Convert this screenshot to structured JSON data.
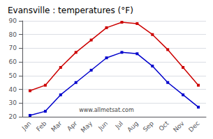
{
  "chart_data": {
    "type": "line",
    "title": "Evansville : temperatures (°F)",
    "categories": [
      "Jan",
      "Feb",
      "Mar",
      "Apr",
      "May",
      "Jun",
      "Jul",
      "Aug",
      "Sep",
      "Oct",
      "Nov",
      "Dec"
    ],
    "series": [
      {
        "color": "#cc0000",
        "values": [
          39,
          43,
          56,
          67,
          76,
          85,
          89,
          88,
          80,
          69,
          56,
          43
        ]
      },
      {
        "color": "#0000cc",
        "values": [
          21,
          24,
          36,
          45,
          54,
          63,
          67,
          66,
          57,
          45,
          36,
          27
        ]
      }
    ],
    "marker": "square",
    "ylim": [
      20,
      90
    ],
    "yticks": [
      20,
      30,
      40,
      50,
      60,
      70,
      80,
      90
    ],
    "grid": true,
    "annotations": [
      "www.allmetsat.com"
    ]
  }
}
